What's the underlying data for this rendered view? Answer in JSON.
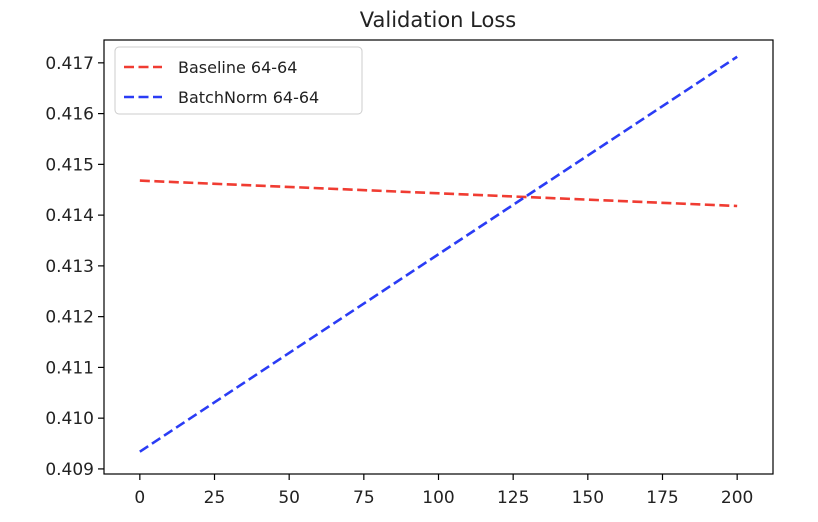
{
  "chart_data": {
    "type": "line",
    "title": "Validation Loss",
    "xlabel": "",
    "ylabel": "",
    "xlim": [
      -12,
      212
    ],
    "ylim": [
      0.4089,
      0.41745
    ],
    "x_ticks": [
      0,
      25,
      50,
      75,
      100,
      125,
      150,
      175,
      200
    ],
    "x_tick_labels": [
      "0",
      "25",
      "50",
      "75",
      "100",
      "125",
      "150",
      "175",
      "200"
    ],
    "y_ticks": [
      0.409,
      0.41,
      0.411,
      0.412,
      0.413,
      0.414,
      0.415,
      0.416,
      0.417
    ],
    "y_tick_labels": [
      "0.409",
      "0.410",
      "0.411",
      "0.412",
      "0.413",
      "0.414",
      "0.415",
      "0.416",
      "0.417"
    ],
    "grid": false,
    "legend_position": "top-left",
    "series": [
      {
        "name": "Baseline 64-64",
        "color": "#f03c32",
        "line_style": "dashed",
        "x": [
          0,
          200
        ],
        "y": [
          0.41468,
          0.41418
        ]
      },
      {
        "name": "BatchNorm 64-64",
        "color": "#2a3cf5",
        "line_style": "dashed",
        "x": [
          0,
          200
        ],
        "y": [
          0.40934,
          0.41712
        ]
      }
    ]
  }
}
